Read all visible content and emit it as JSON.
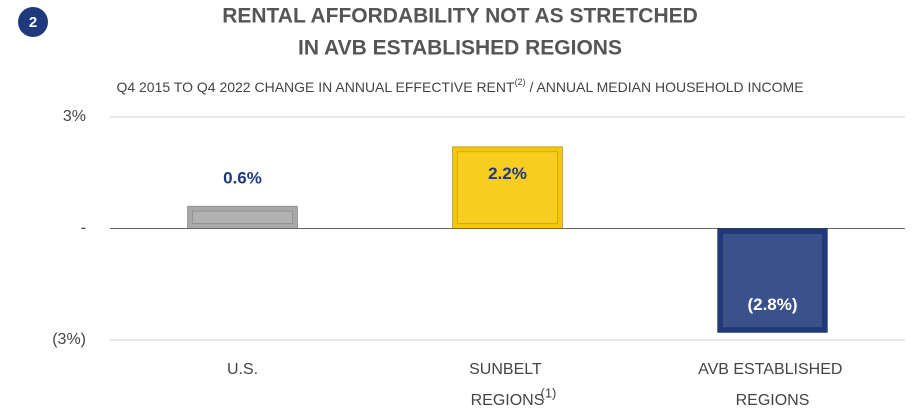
{
  "chart_data": {
    "type": "bar",
    "badge": "2",
    "title": [
      "RENTAL AFFORDABILITY NOT AS STRETCHED",
      "IN AVB ESTABLISHED REGIONS"
    ],
    "subtitle": [
      "Q4 2015 TO Q4 2022 CHANGE IN ANNUAL EFFECTIVE RENT",
      "(2)",
      " / ANNUAL MEDIAN HOUSEHOLD INCOME"
    ],
    "categories": [
      "U.S.",
      "SUNBELT REGIONS",
      "AVB ESTABLISHED REGIONS"
    ],
    "category_footnotes": [
      null,
      "(1)",
      null
    ],
    "values": [
      0.6,
      2.2,
      -2.8
    ],
    "value_labels": [
      "0.6%",
      "2.2%",
      "(2.8%)"
    ],
    "colors": [
      "#a8a8a8",
      "#f6c600",
      "#1f3a7c"
    ],
    "value_label_colors": [
      "#1f3a7c",
      "#1f3a7c",
      "#ffffff"
    ],
    "ylim": [
      -3,
      3
    ],
    "yticks": [
      {
        "value": -3,
        "label": "(3%)"
      },
      {
        "value": 0,
        "label": "-"
      },
      {
        "value": 3,
        "label": "3%"
      }
    ],
    "grid": true
  }
}
